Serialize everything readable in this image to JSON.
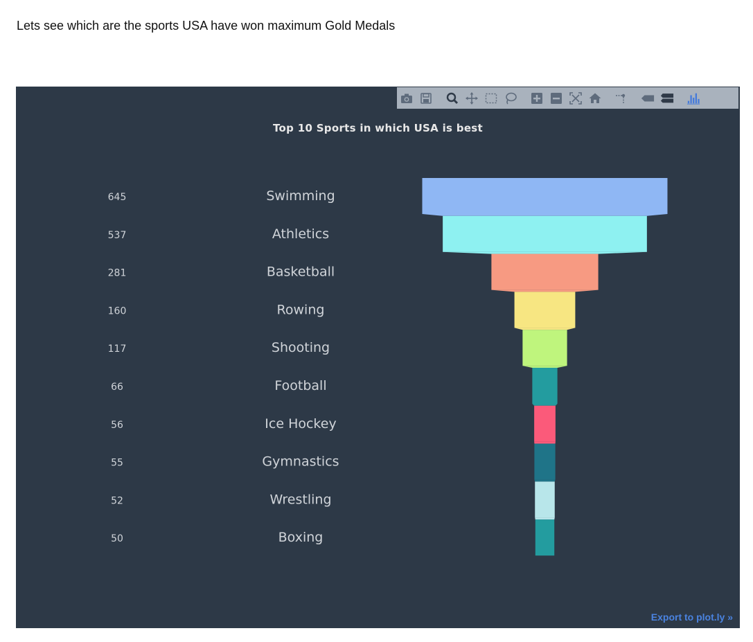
{
  "intro_text": "Lets see which are the sports USA have won maximum Gold Medals",
  "modebar": {
    "icons": [
      "camera-icon",
      "save-icon",
      "zoom-icon",
      "pan-icon",
      "box-select-icon",
      "lasso-icon",
      "zoom-in-icon",
      "zoom-out-icon",
      "autoscale-icon",
      "home-icon",
      "spike-lines-icon",
      "hover-closest-icon",
      "hover-compare-icon",
      "plotly-logo-icon"
    ]
  },
  "export_link": "Export to plot.ly »",
  "colors": {
    "background": "#2d3947",
    "text": "#d0d4d9"
  },
  "chart_data": {
    "type": "funnel",
    "title": "Top 10 Sports in which USA is best",
    "categories": [
      "Swimming",
      "Athletics",
      "Basketball",
      "Rowing",
      "Shooting",
      "Football",
      "Ice Hockey",
      "Gymnastics",
      "Wrestling",
      "Boxing"
    ],
    "values": [
      645,
      537,
      281,
      160,
      117,
      66,
      56,
      55,
      52,
      50
    ],
    "colors": [
      "#8fb7f4",
      "#8ef1f1",
      "#f79a82",
      "#f7e682",
      "#bff57d",
      "#239c9f",
      "#fb5a7a",
      "#1f7488",
      "#b8e6ea",
      "#239c9f"
    ]
  }
}
